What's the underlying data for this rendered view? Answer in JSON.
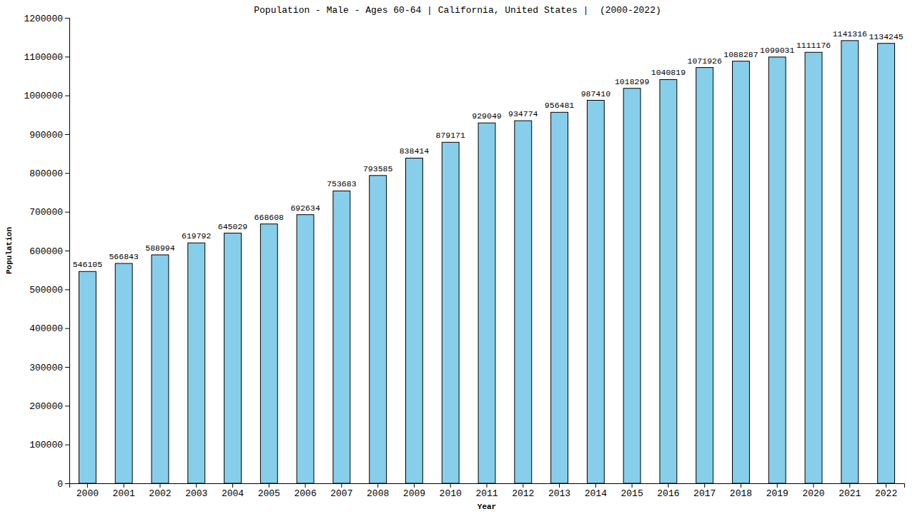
{
  "chart_data": {
    "type": "bar",
    "title": "Population - Male - Ages 60-64 | California, United States |  (2000-2022)",
    "x_label": "Year",
    "y_label": "Population",
    "categories": [
      "2000",
      "2001",
      "2002",
      "2003",
      "2004",
      "2005",
      "2006",
      "2007",
      "2008",
      "2009",
      "2010",
      "2011",
      "2012",
      "2013",
      "2014",
      "2015",
      "2016",
      "2017",
      "2018",
      "2019",
      "2020",
      "2021",
      "2022"
    ],
    "values": [
      546105,
      566843,
      588994,
      619792,
      645029,
      668608,
      692634,
      753683,
      793585,
      838414,
      879171,
      929049,
      934774,
      956481,
      987410,
      1018299,
      1040819,
      1071926,
      1088287,
      1099031,
      1111176,
      1141316,
      1134245
    ],
    "color": "#87ceeb",
    "ylim": [
      0,
      1200000
    ],
    "yticks": [
      0,
      100000,
      200000,
      300000,
      400000,
      500000,
      600000,
      700000,
      800000,
      900000,
      1000000,
      1100000,
      1200000
    ],
    "grid": false,
    "data_labels": true
  }
}
